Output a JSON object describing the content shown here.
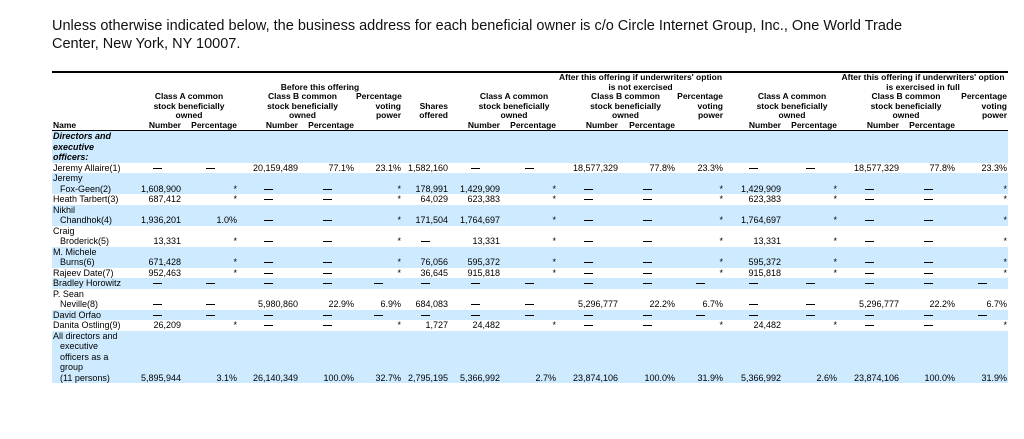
{
  "intro": "Unless otherwise indicated below, the business address for each beneficial owner is c/o Circle Internet Group, Inc., One World Trade Center, New York, NY 10007.",
  "headers": {
    "group_before": "Before this offering",
    "group_not_exercised": "After this offering if underwriters' option is not exercised",
    "group_exercised": "After this offering if underwriters' option is exercised in full",
    "class_a": "Class A common stock beneficially owned",
    "class_b": "Class B common stock beneficially owned",
    "pct_voting": "Percentage voting power",
    "shares_offered": "Shares offered",
    "name": "Name",
    "number": "Number",
    "percentage": "Percentage"
  },
  "section_directors": "Directors and executive officers:",
  "rows": [
    {
      "name": "Jeremy Allaire(1)",
      "shade": false,
      "v": [
        "—",
        "—",
        "20,159,489",
        "77.1%",
        "23.1%",
        "1,582,160",
        "—",
        "—",
        "18,577,329",
        "77.8%",
        "23.3%",
        "—",
        "—",
        "18,577,329",
        "77.8%",
        "23.3%"
      ]
    },
    {
      "name": "Jeremy",
      "name2": "Fox-Geen(2)",
      "shade": true,
      "v": [
        "1,608,900",
        "*",
        "—",
        "—",
        "*",
        "178,991",
        "1,429,909",
        "*",
        "—",
        "—",
        "*",
        "1,429,909",
        "*",
        "—",
        "—",
        "*"
      ]
    },
    {
      "name": "Heath Tarbert(3)",
      "shade": false,
      "v": [
        "687,412",
        "*",
        "—",
        "—",
        "*",
        "64,029",
        "623,383",
        "*",
        "—",
        "—",
        "*",
        "623,383",
        "*",
        "—",
        "—",
        "*"
      ]
    },
    {
      "name": "Nikhil",
      "name2": "Chandhok(4)",
      "shade": true,
      "v": [
        "1,936,201",
        "1.0%",
        "—",
        "—",
        "*",
        "171,504",
        "1,764,697",
        "*",
        "—",
        "—",
        "*",
        "1,764,697",
        "*",
        "—",
        "—",
        "*"
      ]
    },
    {
      "name": "Craig",
      "name2": "Broderick(5)",
      "shade": false,
      "v": [
        "13,331",
        "*",
        "—",
        "—",
        "*",
        "—",
        "13,331",
        "*",
        "—",
        "—",
        "*",
        "13,331",
        "*",
        "—",
        "—",
        "*"
      ]
    },
    {
      "name": "M. Michele",
      "name2": "Burns(6)",
      "shade": true,
      "v": [
        "671,428",
        "*",
        "—",
        "—",
        "*",
        "76,056",
        "595,372",
        "*",
        "—",
        "—",
        "*",
        "595,372",
        "*",
        "—",
        "—",
        "*"
      ]
    },
    {
      "name": "Rajeev Date(7)",
      "shade": false,
      "v": [
        "952,463",
        "*",
        "—",
        "—",
        "*",
        "36,645",
        "915,818",
        "*",
        "—",
        "—",
        "*",
        "915,818",
        "*",
        "—",
        "—",
        "*"
      ]
    },
    {
      "name": "Bradley Horowitz",
      "shade": true,
      "v": [
        "—",
        "—",
        "—",
        "—",
        "—",
        "—",
        "—",
        "—",
        "—",
        "—",
        "—",
        "—",
        "—",
        "—",
        "—",
        "—"
      ]
    },
    {
      "name": "P. Sean",
      "name2": "Neville(8)",
      "shade": false,
      "v": [
        "—",
        "—",
        "5,980,860",
        "22.9%",
        "6.9%",
        "684,083",
        "—",
        "—",
        "5,296,777",
        "22.2%",
        "6.7%",
        "—",
        "—",
        "5,296,777",
        "22.2%",
        "6.7%"
      ]
    },
    {
      "name": "David Orfao",
      "shade": true,
      "v": [
        "—",
        "—",
        "—",
        "—",
        "—",
        "—",
        "—",
        "—",
        "—",
        "—",
        "—",
        "—",
        "—",
        "—",
        "—",
        "—"
      ]
    },
    {
      "name": "Danita Ostling(9)",
      "shade": false,
      "v": [
        "26,209",
        "*",
        "—",
        "—",
        "*",
        "1,727",
        "24,482",
        "*",
        "—",
        "—",
        "*",
        "24,482",
        "*",
        "—",
        "—",
        "*"
      ]
    },
    {
      "name": "All directors and",
      "name2": "executive",
      "name3": "officers as a",
      "name4": "group",
      "name5": "(11 persons)",
      "shade": true,
      "v": [
        "5,895,944",
        "3.1%",
        "26,140,349",
        "100.0%",
        "32.7%",
        "2,795,195",
        "5,366,992",
        "2.7%",
        "23,874,106",
        "100.0%",
        "31.9%",
        "5,366,992",
        "2.6%",
        "23,874,106",
        "100.0%",
        "31.9%"
      ]
    }
  ]
}
